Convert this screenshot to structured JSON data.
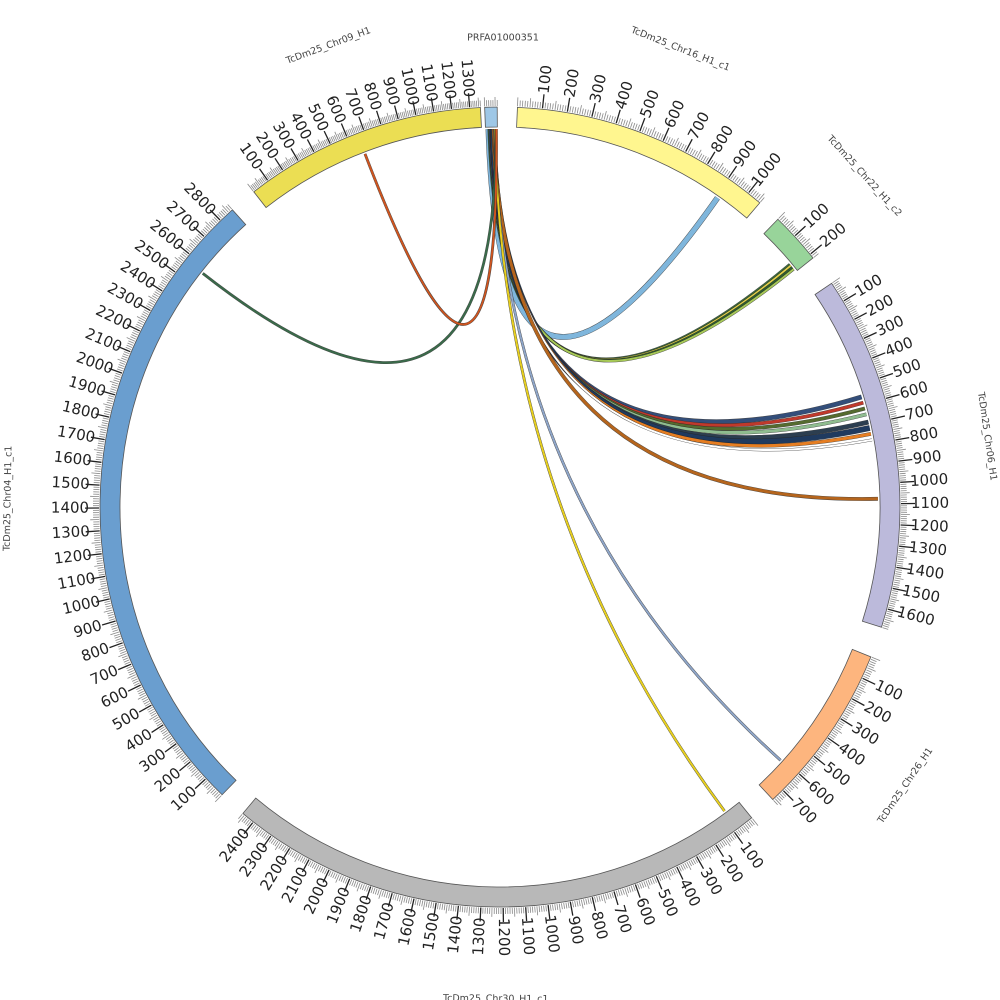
{
  "chromosomes": [
    {
      "id": "chr16",
      "name": "TcDm25_Chr16_H1_c1",
      "length": 1060,
      "color": "#fff68f",
      "label_step": 100,
      "labels": [
        "100",
        "200",
        "300",
        "400",
        "500",
        "600",
        "700",
        "800",
        "900",
        "1000"
      ]
    },
    {
      "id": "chr22",
      "name": "TcDm25_Chr22_H1_c2",
      "length": 220,
      "color": "#98d49a",
      "label_step": 100,
      "labels": [
        "100",
        "200"
      ]
    },
    {
      "id": "chr06",
      "name": "TcDm25_Chr06_H1",
      "length": 1690,
      "color": "#bcbadb",
      "label_step": 100,
      "labels": [
        "100",
        "200",
        "300",
        "400",
        "500",
        "600",
        "700",
        "800",
        "900",
        "1000",
        "1100",
        "1200",
        "1300",
        "1400",
        "1500",
        "1600"
      ]
    },
    {
      "id": "chr26",
      "name": "TcDm25_Chr26_H1",
      "length": 760,
      "color": "#fdb57e",
      "label_step": 100,
      "labels": [
        "100",
        "200",
        "300",
        "400",
        "500",
        "600",
        "700"
      ]
    },
    {
      "id": "chr30",
      "name": "TcDm25_Chr30_H1_c1",
      "length": 2460,
      "color": "#b8b8b8",
      "label_step": 100,
      "labels": [
        "100",
        "200",
        "300",
        "400",
        "500",
        "600",
        "700",
        "800",
        "900",
        "1000",
        "1100",
        "1200",
        "1300",
        "1400",
        "1500",
        "1600",
        "1700",
        "1800",
        "1900",
        "2000",
        "2100",
        "2200",
        "2300",
        "2400"
      ]
    },
    {
      "id": "chr04",
      "name": "TcDm25_Chr04_H1_c1",
      "length": 2870,
      "color": "#6a9ecf",
      "label_step": 100,
      "labels": [
        "100",
        "200",
        "300",
        "400",
        "500",
        "600",
        "700",
        "800",
        "900",
        "1000",
        "1100",
        "1200",
        "1300",
        "1400",
        "1500",
        "1600",
        "1700",
        "1800",
        "1900",
        "2000",
        "2100",
        "2200",
        "2300",
        "2400",
        "2500",
        "2600",
        "2700",
        "2800"
      ]
    },
    {
      "id": "chr09",
      "name": "TcDm25_Chr09_H1",
      "length": 1360,
      "color": "#ebde53",
      "label_step": 100,
      "labels": [
        "100",
        "200",
        "300",
        "400",
        "500",
        "600",
        "700",
        "800",
        "900",
        "1000",
        "1100",
        "1200",
        "1300"
      ]
    },
    {
      "id": "prfa",
      "name": "PRFA01000351",
      "length": 60,
      "color": "#9ec7e6",
      "label_step": 100,
      "labels": []
    }
  ],
  "links": [
    {
      "source": "prfa",
      "s_pos": 15,
      "target": "chr16",
      "t_pos": 910,
      "color": "#7fb6dc",
      "width": 5
    },
    {
      "source": "prfa",
      "s_pos": 20,
      "target": "chr22",
      "t_pos": 180,
      "color": "#3c6b3c",
      "width": 3
    },
    {
      "source": "prfa",
      "s_pos": 22,
      "target": "chr22",
      "t_pos": 185,
      "color": "#e3d34a",
      "width": 2
    },
    {
      "source": "prfa",
      "s_pos": 24,
      "target": "chr22",
      "t_pos": 195,
      "color": "#2f5d2f",
      "width": 2
    },
    {
      "source": "prfa",
      "s_pos": 26,
      "target": "chr22",
      "t_pos": 205,
      "color": "#a7c957",
      "width": 2
    },
    {
      "source": "prfa",
      "s_pos": 28,
      "target": "chr06",
      "t_pos": 560,
      "color": "#334e7a",
      "width": 4
    },
    {
      "source": "prfa",
      "s_pos": 30,
      "target": "chr06",
      "t_pos": 590,
      "color": "#c0392b",
      "width": 3
    },
    {
      "source": "prfa",
      "s_pos": 32,
      "target": "chr06",
      "t_pos": 620,
      "color": "#556b2f",
      "width": 3
    },
    {
      "source": "prfa",
      "s_pos": 34,
      "target": "chr06",
      "t_pos": 650,
      "color": "#8fbc8f",
      "width": 3
    },
    {
      "source": "prfa",
      "s_pos": 36,
      "target": "chr06",
      "t_pos": 690,
      "color": "#2c3e50",
      "width": 4
    },
    {
      "source": "prfa",
      "s_pos": 38,
      "target": "chr06",
      "t_pos": 720,
      "color": "#1f3a5f",
      "width": 5
    },
    {
      "source": "prfa",
      "s_pos": 40,
      "target": "chr06",
      "t_pos": 750,
      "color": "#e67e22",
      "width": 3
    },
    {
      "source": "prfa",
      "s_pos": 42,
      "target": "chr06",
      "t_pos": 780,
      "color": "#ffffff",
      "width": 2
    },
    {
      "source": "prfa",
      "s_pos": 44,
      "target": "chr06",
      "t_pos": 1075,
      "color": "#b5651d",
      "width": 3
    },
    {
      "source": "prfa",
      "s_pos": 46,
      "target": "chr26",
      "t_pos": 610,
      "color": "#8fa6c9",
      "width": 2
    },
    {
      "source": "prfa",
      "s_pos": 48,
      "target": "chr30",
      "t_pos": 80,
      "color": "#e8d01f",
      "width": 2
    },
    {
      "source": "prfa",
      "s_pos": 52,
      "target": "chr04",
      "t_pos": 2570,
      "color": "#3a6b4a",
      "width": 2
    },
    {
      "source": "prfa",
      "s_pos": 55,
      "target": "chr09",
      "t_pos": 660,
      "color": "#d0551f",
      "width": 2
    }
  ]
}
